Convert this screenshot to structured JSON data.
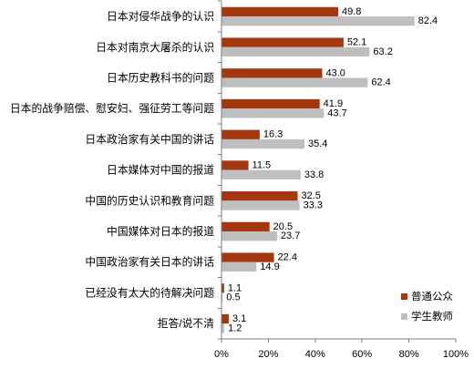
{
  "chart_data": {
    "type": "bar",
    "orientation": "horizontal",
    "categories": [
      "日本对侵华战争的认识",
      "日本对南京大屠杀的认识",
      "日本历史教科书的问题",
      "日本的战争赔偿、慰安妇、强征劳工等问题",
      "日本政治家有关中国的讲话",
      "日本媒体对中国的报道",
      "中国的历史认识和教育问题",
      "中国媒体对日本的报道",
      "中国政治家有关日本的讲话",
      "已经没有太大的待解决问题",
      "拒答/说不清"
    ],
    "series": [
      {
        "name": "普通公众",
        "color": "#A3380F",
        "values": [
          49.8,
          52.1,
          43.0,
          41.9,
          16.3,
          11.5,
          32.5,
          20.5,
          22.4,
          1.1,
          3.1
        ]
      },
      {
        "name": "学生教师",
        "color": "#BFBFBF",
        "values": [
          82.4,
          63.2,
          62.4,
          43.7,
          35.4,
          33.8,
          33.3,
          23.7,
          14.9,
          0.5,
          1.2
        ]
      }
    ],
    "xlim": [
      0,
      100
    ],
    "xticks": [
      0,
      20,
      40,
      60,
      80,
      100
    ],
    "xtick_labels": [
      "0%",
      "20%",
      "40%",
      "60%",
      "80%",
      "100%"
    ],
    "grid": false,
    "legend_position": "right"
  }
}
